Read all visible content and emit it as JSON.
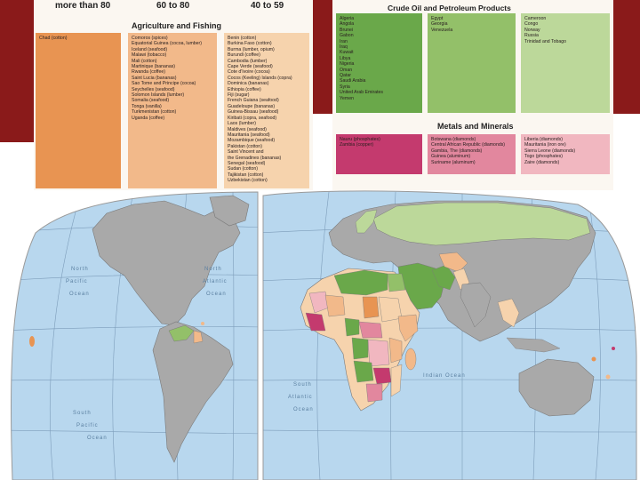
{
  "agriculture": {
    "title": "Agriculture and Fishing",
    "col_more_than_80": {
      "header": "more than 80",
      "items": [
        "Chad (cotton)"
      ]
    },
    "col_60_to_80": {
      "header": "60 to 80",
      "items": [
        "Comoros (spices)",
        "Equatorial Guinea (cocoa, lumber)",
        "Iceland (seafood)",
        "Malawi (tobacco)",
        "Mali (cotton)",
        "Martinique (bananas)",
        "Rwanda (coffee)",
        "Saint Lucia (bananas)",
        "Sao Tome and Principe (cocoa)",
        "Seychelles (seafood)",
        "Solomon Islands (lumber)",
        "Somalia (seafood)",
        "Tonga (vanilla)",
        "Turkmenistan (cotton)",
        "Uganda (coffee)"
      ]
    },
    "col_40_to_59": {
      "header": "40 to 59",
      "items": [
        "Benin (cotton)",
        "Burkina Faso (cotton)",
        "Burma (lumber, opium)",
        "Burundi (coffee)",
        "Cambodia (lumber)",
        "Cape Verde (seafood)",
        "Cote d'Ivoire (cocoa)",
        "Cocos (Keeling) Islands (copra)",
        "Dominica (bananas)",
        "Ethiopia (coffee)",
        "Fiji (sugar)",
        "French Guiana (seafood)",
        "Guadeloupe (bananas)",
        "Guinea-Bissau (seafood)",
        "Kiribati (copra, seafood)",
        "Laos (lumber)",
        "Maldives (seafood)",
        "Mauritania (seafood)",
        "Mozambique (seafood)",
        "Pakistan (cotton)",
        "Saint Vincent and",
        "  the Grenadines (bananas)",
        "Senegal (seafood)",
        "Sudan (cotton)",
        "Tajikistan (cotton)",
        "Uzbekistan (cotton)"
      ]
    }
  },
  "crude_oil": {
    "title": "Crude Oil and Petroleum Products",
    "col1": [
      "Algeria",
      "Angola",
      "Brunei",
      "Gabon",
      "Iran",
      "Iraq",
      "Kuwait",
      "Libya",
      "Nigeria",
      "Oman",
      "Qatar",
      "Saudi Arabia",
      "Syria",
      "United Arab Emirates",
      "Yemen"
    ],
    "col2": [
      "Egypt",
      "Georgia",
      "Venezuela"
    ],
    "col3": [
      "Cameroon",
      "Congo",
      "Norway",
      "Russia",
      "Trinidad and Tobago"
    ]
  },
  "metals": {
    "title": "Metals and Minerals",
    "col1": [
      "Nauru (phosphates)",
      "Zambia (copper)"
    ],
    "col2": [
      "Botswana (diamonds)",
      "Central African Republic (diamonds)",
      "Gambia, The (diamonds)",
      "Guinea (aluminum)",
      "Suriname (aluminum)"
    ],
    "col3": [
      "Liberia (diamonds)",
      "Mauritania (iron ore)",
      "Sierra Leone (diamonds)",
      "Togo (phosphates)",
      "Zaire (diamonds)"
    ]
  },
  "map_labels": {
    "north_pacific": [
      "North",
      "Pacific",
      "Ocean"
    ],
    "north_atlantic": [
      "North",
      "Atlantic",
      "Ocean"
    ],
    "south_pacific": [
      "South",
      "Pacific",
      "Ocean"
    ],
    "south_atlantic": [
      "South",
      "Atlantic",
      "Ocean"
    ],
    "indian_ocean": "Indian Ocean"
  },
  "colors": {
    "dark_orange": "#e89452",
    "mid_orange": "#f2b98a",
    "light_orange": "#f6d3ad",
    "dark_green": "#6aa84a",
    "mid_green": "#93c069",
    "light_green": "#bcd89a",
    "dark_pink": "#c43a6e",
    "mid_pink": "#e2879e",
    "light_pink": "#f1b7c0",
    "ocean": "#b8d7ee",
    "land_gray": "#a9a9a9"
  }
}
